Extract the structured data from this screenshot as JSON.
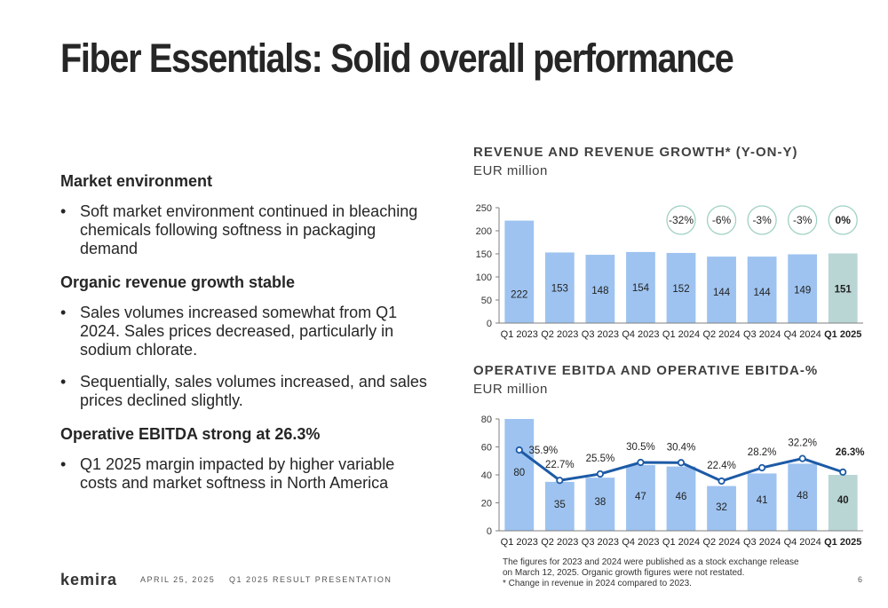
{
  "title": "Fiber Essentials: Solid overall performance",
  "left": {
    "sections": [
      {
        "heading": "Market environment",
        "bullets": [
          "Soft market environment continued in bleaching chemicals following softness in packaging demand"
        ]
      },
      {
        "heading": "Organic revenue growth stable",
        "bullets": [
          "Sales volumes increased somewhat from Q1 2024. Sales prices decreased, particularly in sodium chlorate.",
          "Sequentially, sales volumes increased, and sales prices declined slightly."
        ]
      },
      {
        "heading": "Operative EBITDA strong at 26.3%",
        "bullets": [
          "Q1 2025 margin impacted by higher variable costs and market softness in North America"
        ]
      }
    ]
  },
  "colors": {
    "bar": "#9ec3f0",
    "bar_highlight": "#b9d6d5",
    "line": "#1c5aa6",
    "growth_circle": "#9fd0c4",
    "axis": "#7f7f7f"
  },
  "chart_data": [
    {
      "type": "bar",
      "title": "REVENUE AND REVENUE GROWTH* (Y-ON-Y)",
      "subtitle": "EUR million",
      "categories": [
        "Q1 2023",
        "Q2 2023",
        "Q3 2023",
        "Q4 2023",
        "Q1 2024",
        "Q2 2024",
        "Q3 2024",
        "Q4 2024",
        "Q1 2025"
      ],
      "values": [
        222,
        153,
        148,
        154,
        152,
        144,
        144,
        149,
        151
      ],
      "highlight_last": true,
      "ylim": [
        0,
        250
      ],
      "yticks": [
        0,
        50,
        100,
        150,
        200,
        250
      ],
      "growth": [
        {
          "category": "Q1 2024",
          "label": "-32%"
        },
        {
          "category": "Q2 2024",
          "label": "-6%"
        },
        {
          "category": "Q3 2024",
          "label": "-3%"
        },
        {
          "category": "Q4 2024",
          "label": "-3%"
        },
        {
          "category": "Q1 2025",
          "label": "0%"
        }
      ]
    },
    {
      "type": "bar",
      "title": "OPERATIVE EBITDA AND OPERATIVE EBITDA-%",
      "subtitle": "EUR million",
      "categories": [
        "Q1 2023",
        "Q2 2023",
        "Q3 2023",
        "Q4 2023",
        "Q1 2024",
        "Q2 2024",
        "Q3 2024",
        "Q4 2024",
        "Q1 2025"
      ],
      "values": [
        80,
        35,
        38,
        47,
        46,
        32,
        41,
        48,
        40
      ],
      "highlight_last": true,
      "ylim": [
        0,
        80
      ],
      "yticks": [
        0,
        20,
        40,
        60,
        80
      ],
      "line_series": {
        "values": [
          35.9,
          22.7,
          25.5,
          30.5,
          30.4,
          22.4,
          28.2,
          32.2,
          26.3
        ],
        "labels": [
          "35.9%",
          "22.7%",
          "25.5%",
          "30.5%",
          "30.4%",
          "22.4%",
          "28.2%",
          "32.2%",
          "26.3%"
        ]
      }
    }
  ],
  "footer": {
    "logo": "kemira",
    "date": "APRIL 25, 2025",
    "presentation": "Q1 2025 RESULT PRESENTATION",
    "page": "6",
    "footnote": [
      "The figures for 2023 and 2024 were published as a stock exchange release",
      "on March 12, 2025. Organic growth figures were not restated.",
      "* Change in revenue in 2024 compared to 2023."
    ]
  }
}
